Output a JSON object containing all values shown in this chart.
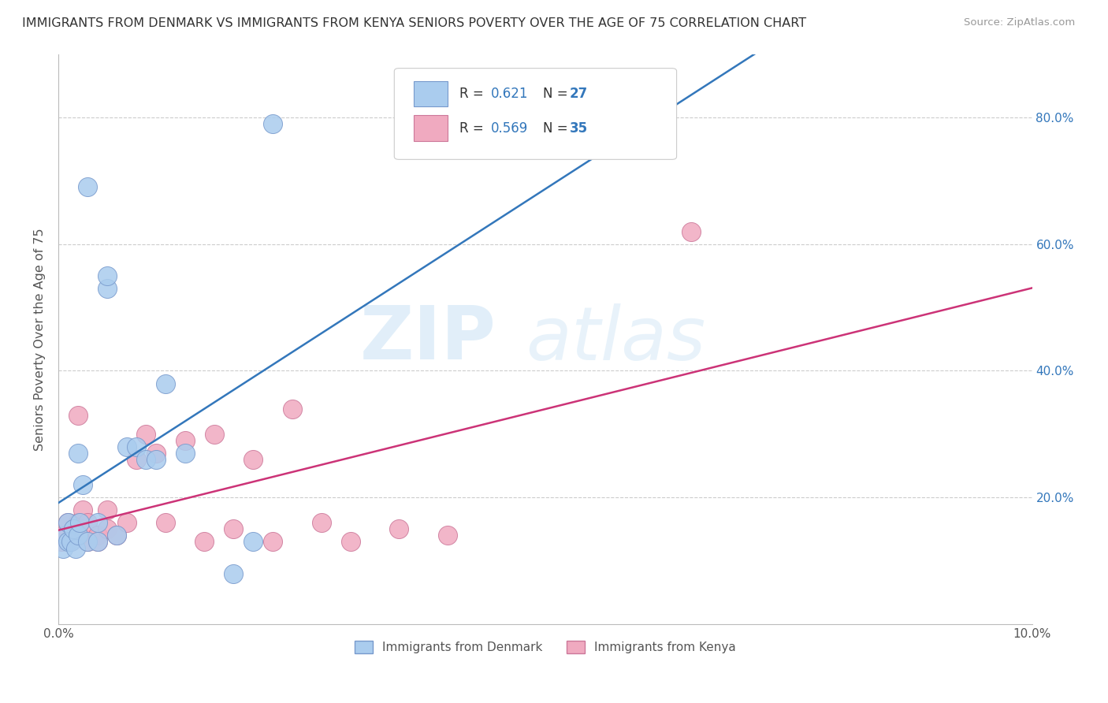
{
  "title": "IMMIGRANTS FROM DENMARK VS IMMIGRANTS FROM KENYA SENIORS POVERTY OVER THE AGE OF 75 CORRELATION CHART",
  "source": "Source: ZipAtlas.com",
  "ylabel": "Seniors Poverty Over the Age of 75",
  "denmark_label": "Immigrants from Denmark",
  "kenya_label": "Immigrants from Kenya",
  "denmark_R": 0.621,
  "denmark_N": 27,
  "kenya_R": 0.569,
  "kenya_N": 35,
  "xlim": [
    0.0,
    0.1
  ],
  "ylim": [
    0.0,
    0.9
  ],
  "xtick_positions": [
    0.0,
    0.02,
    0.04,
    0.06,
    0.08,
    0.1
  ],
  "xtick_labels": [
    "0.0%",
    "",
    "",
    "",
    "",
    "10.0%"
  ],
  "ytick_positions": [
    0.0,
    0.2,
    0.4,
    0.6,
    0.8
  ],
  "ytick_labels": [
    "",
    "20.0%",
    "40.0%",
    "60.0%",
    "80.0%"
  ],
  "denmark_color": "#aaccee",
  "denmark_edge": "#7799cc",
  "kenya_color": "#f0aac0",
  "kenya_edge": "#cc7799",
  "trendline_denmark_color": "#3377bb",
  "trendline_kenya_color": "#cc3377",
  "denmark_x": [
    0.0005,
    0.0008,
    0.001,
    0.001,
    0.0013,
    0.0015,
    0.0018,
    0.002,
    0.002,
    0.0022,
    0.0025,
    0.003,
    0.003,
    0.004,
    0.004,
    0.005,
    0.005,
    0.006,
    0.007,
    0.008,
    0.009,
    0.01,
    0.011,
    0.013,
    0.018,
    0.02,
    0.022
  ],
  "denmark_y": [
    0.12,
    0.14,
    0.13,
    0.16,
    0.13,
    0.15,
    0.12,
    0.14,
    0.27,
    0.16,
    0.22,
    0.13,
    0.69,
    0.16,
    0.13,
    0.53,
    0.55,
    0.14,
    0.28,
    0.28,
    0.26,
    0.26,
    0.38,
    0.27,
    0.08,
    0.13,
    0.79
  ],
  "kenya_x": [
    0.0003,
    0.0005,
    0.0008,
    0.001,
    0.0012,
    0.0015,
    0.0018,
    0.002,
    0.002,
    0.0022,
    0.0025,
    0.003,
    0.003,
    0.004,
    0.004,
    0.005,
    0.005,
    0.006,
    0.007,
    0.008,
    0.009,
    0.01,
    0.011,
    0.013,
    0.015,
    0.016,
    0.018,
    0.02,
    0.022,
    0.024,
    0.027,
    0.03,
    0.035,
    0.04,
    0.065
  ],
  "kenya_y": [
    0.13,
    0.14,
    0.14,
    0.16,
    0.13,
    0.15,
    0.14,
    0.16,
    0.33,
    0.14,
    0.18,
    0.13,
    0.16,
    0.14,
    0.13,
    0.15,
    0.18,
    0.14,
    0.16,
    0.26,
    0.3,
    0.27,
    0.16,
    0.29,
    0.13,
    0.3,
    0.15,
    0.26,
    0.13,
    0.34,
    0.16,
    0.13,
    0.15,
    0.14,
    0.62
  ],
  "watermark_zip": "ZIP",
  "watermark_atlas": "atlas",
  "background_color": "#ffffff",
  "grid_color": "#cccccc"
}
